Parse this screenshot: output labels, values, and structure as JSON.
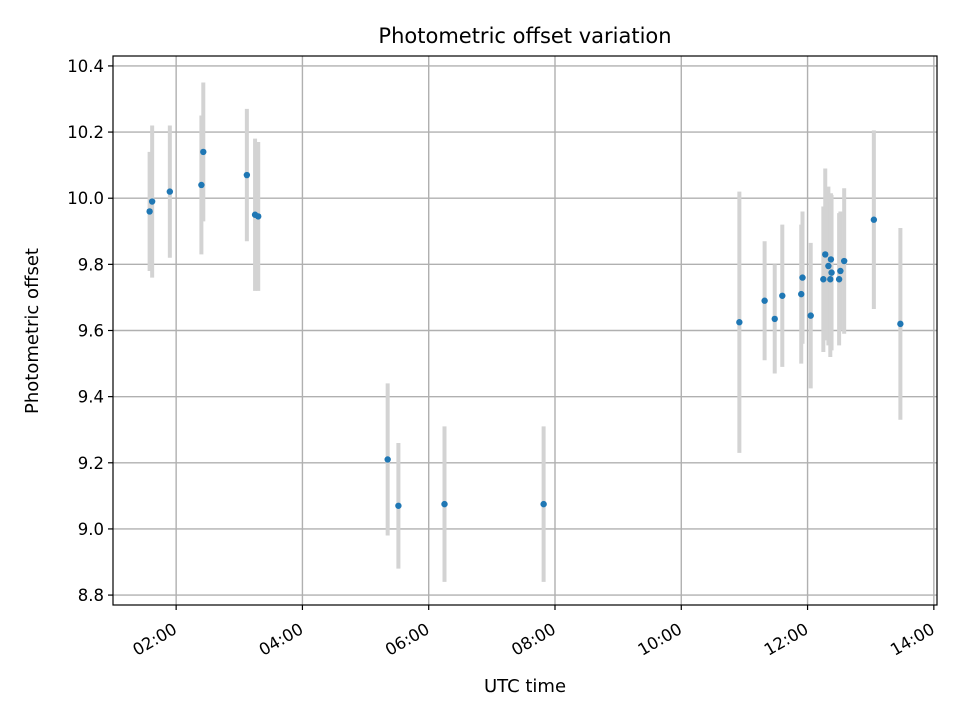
{
  "chart_data": {
    "type": "scatter",
    "title": "Photometric offset variation",
    "xlabel": "UTC time",
    "ylabel": "Photometric offset",
    "x_unit": "hours UTC",
    "xlim": [
      1.0,
      14.05
    ],
    "ylim": [
      8.77,
      10.43
    ],
    "x_ticks": [
      2,
      4,
      6,
      8,
      10,
      12,
      14
    ],
    "x_tick_labels": [
      "02:00",
      "04:00",
      "06:00",
      "08:00",
      "10:00",
      "12:00",
      "14:00"
    ],
    "y_ticks": [
      8.8,
      9.0,
      9.2,
      9.4,
      9.6,
      9.8,
      10.0,
      10.2,
      10.4
    ],
    "y_tick_labels": [
      "8.8",
      "9.0",
      "9.2",
      "9.4",
      "9.6",
      "9.8",
      "10.0",
      "10.2",
      "10.4"
    ],
    "grid": true,
    "marker_color": "#1f77b4",
    "errorbar_color": "#d3d3d3",
    "points": [
      {
        "x": 1.58,
        "y": 9.96,
        "err": 0.18
      },
      {
        "x": 1.62,
        "y": 9.99,
        "err": 0.23
      },
      {
        "x": 1.9,
        "y": 10.02,
        "err": 0.2
      },
      {
        "x": 2.4,
        "y": 10.04,
        "err": 0.21
      },
      {
        "x": 2.43,
        "y": 10.14,
        "err": 0.21
      },
      {
        "x": 3.12,
        "y": 10.07,
        "err": 0.2
      },
      {
        "x": 3.25,
        "y": 9.95,
        "err": 0.23
      },
      {
        "x": 3.3,
        "y": 9.945,
        "err": 0.225
      },
      {
        "x": 5.35,
        "y": 9.21,
        "err": 0.23
      },
      {
        "x": 5.52,
        "y": 9.07,
        "err": 0.19
      },
      {
        "x": 6.25,
        "y": 9.075,
        "err": 0.235
      },
      {
        "x": 7.82,
        "y": 9.075,
        "err": 0.235
      },
      {
        "x": 10.92,
        "y": 9.625,
        "err": 0.395
      },
      {
        "x": 11.32,
        "y": 9.69,
        "err": 0.18
      },
      {
        "x": 11.48,
        "y": 9.635,
        "err": 0.165
      },
      {
        "x": 11.6,
        "y": 9.705,
        "err": 0.215
      },
      {
        "x": 11.9,
        "y": 9.71,
        "err": 0.21
      },
      {
        "x": 11.92,
        "y": 9.76,
        "err": 0.2
      },
      {
        "x": 12.05,
        "y": 9.645,
        "err": 0.22
      },
      {
        "x": 12.25,
        "y": 9.755,
        "err": 0.22
      },
      {
        "x": 12.28,
        "y": 9.83,
        "err": 0.26
      },
      {
        "x": 12.33,
        "y": 9.795,
        "err": 0.24
      },
      {
        "x": 12.36,
        "y": 9.755,
        "err": 0.235
      },
      {
        "x": 12.37,
        "y": 9.815,
        "err": 0.2
      },
      {
        "x": 12.38,
        "y": 9.775,
        "err": 0.235
      },
      {
        "x": 12.5,
        "y": 9.755,
        "err": 0.2
      },
      {
        "x": 12.52,
        "y": 9.78,
        "err": 0.18
      },
      {
        "x": 12.58,
        "y": 9.81,
        "err": 0.22
      },
      {
        "x": 13.05,
        "y": 9.935,
        "err": 0.27
      },
      {
        "x": 13.47,
        "y": 9.62,
        "err": 0.29
      }
    ]
  }
}
